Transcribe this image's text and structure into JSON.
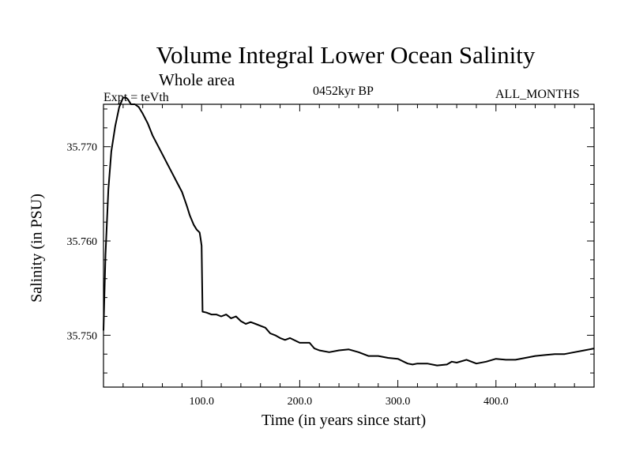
{
  "chart_data": {
    "type": "line",
    "title": "Volume Integral Lower Ocean Salinity",
    "subtitle": "Whole area",
    "annotations": {
      "expt": "Expt = teVth",
      "period": "0452kyr BP",
      "months": "ALL_MONTHS"
    },
    "xlabel": "Time (in years since start)",
    "ylabel": "Salinity (in PSU)",
    "xlim": [
      0,
      500
    ],
    "ylim": [
      35.7445,
      35.7745
    ],
    "xticks": [
      {
        "value": 100,
        "label": "100.0"
      },
      {
        "value": 200,
        "label": "200.0"
      },
      {
        "value": 300,
        "label": "300.0"
      },
      {
        "value": 400,
        "label": "400.0"
      }
    ],
    "yticks": [
      {
        "value": 35.75,
        "label": "35.750"
      },
      {
        "value": 35.76,
        "label": "35.760"
      },
      {
        "value": 35.77,
        "label": "35.770"
      }
    ],
    "grid": false,
    "series": [
      {
        "x": [
          0,
          2,
          5,
          8,
          12,
          16,
          20,
          23,
          25,
          28,
          32,
          36,
          40,
          45,
          50,
          55,
          60,
          65,
          70,
          75,
          80,
          85,
          88,
          92,
          95,
          98,
          99,
          100,
          101,
          105,
          110,
          115,
          120,
          125,
          130,
          135,
          140,
          145,
          150,
          155,
          160,
          165,
          170,
          175,
          180,
          185,
          190,
          200,
          210,
          215,
          220,
          230,
          240,
          250,
          260,
          270,
          280,
          290,
          300,
          310,
          315,
          320,
          330,
          340,
          350,
          355,
          360,
          370,
          380,
          390,
          400,
          410,
          420,
          430,
          440,
          450,
          460,
          470,
          480,
          490,
          495,
          500
        ],
        "y": [
          35.7505,
          35.7585,
          35.7655,
          35.7695,
          35.7722,
          35.7742,
          35.7752,
          35.7752,
          35.775,
          35.7745,
          35.7745,
          35.7742,
          35.7735,
          35.7725,
          35.7712,
          35.7702,
          35.7692,
          35.7682,
          35.7672,
          35.7662,
          35.7652,
          35.7637,
          35.7627,
          35.7617,
          35.7612,
          35.7609,
          35.7602,
          35.7595,
          35.7525,
          35.7524,
          35.7522,
          35.7522,
          35.752,
          35.7522,
          35.7518,
          35.752,
          35.7515,
          35.7512,
          35.7514,
          35.7512,
          35.751,
          35.7508,
          35.7502,
          35.75,
          35.7497,
          35.7495,
          35.7497,
          35.7492,
          35.7492,
          35.7486,
          35.7484,
          35.7482,
          35.7484,
          35.7485,
          35.7482,
          35.7478,
          35.7478,
          35.7476,
          35.7475,
          35.747,
          35.7469,
          35.747,
          35.747,
          35.7468,
          35.7469,
          35.7472,
          35.7471,
          35.7474,
          35.747,
          35.7472,
          35.7475,
          35.7474,
          35.7474,
          35.7476,
          35.7478,
          35.7479,
          35.748,
          35.748,
          35.7482,
          35.7484,
          35.7485,
          35.7486
        ]
      }
    ]
  }
}
